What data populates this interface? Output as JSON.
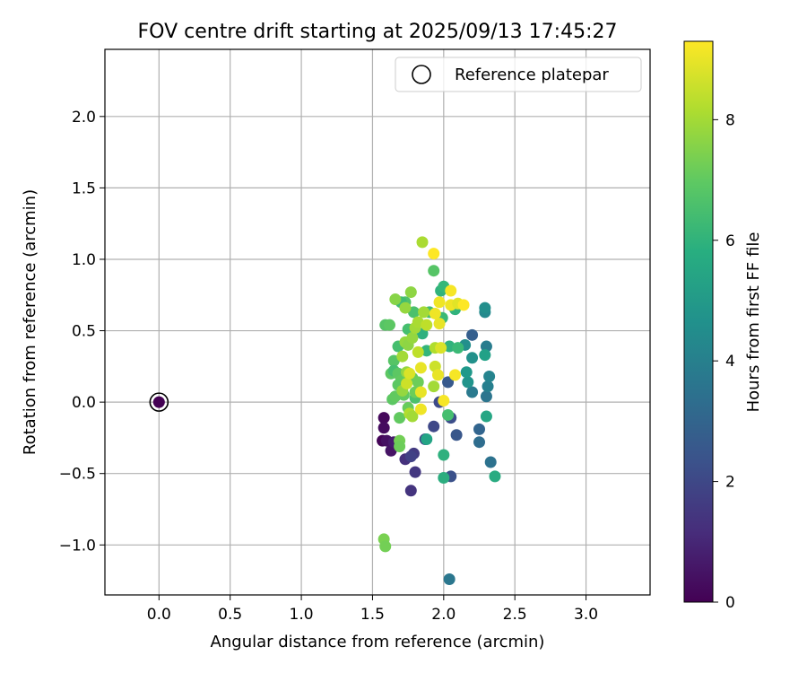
{
  "chart_data": {
    "type": "scatter",
    "title": "FOV centre drift starting at 2025/09/13 17:45:27",
    "xlabel": "Angular distance from reference (arcmin)",
    "ylabel": "Rotation from reference (arcmin)",
    "xlim": [
      -0.38,
      3.45
    ],
    "ylim": [
      -1.35,
      2.47
    ],
    "xticks": [
      "0.0",
      "0.5",
      "1.0",
      "1.5",
      "2.0",
      "2.5",
      "3.0"
    ],
    "xtick_values": [
      0,
      0.5,
      1,
      1.5,
      2,
      2.5,
      3
    ],
    "yticks": [
      "−1.0",
      "−0.5",
      "0.0",
      "0.5",
      "1.0",
      "1.5",
      "2.0"
    ],
    "ytick_values": [
      -1,
      -0.5,
      0,
      0.5,
      1,
      1.5,
      2
    ],
    "grid": true,
    "legend": {
      "position": "top-right",
      "entries": [
        "Reference platepar"
      ]
    },
    "colorbar": {
      "label": "Hours from first FF file",
      "range": [
        0,
        9.3
      ],
      "ticks": [
        "0",
        "2",
        "4",
        "6",
        "8"
      ],
      "tick_values": [
        0,
        2,
        4,
        6,
        8
      ],
      "colormap": "viridis"
    },
    "reference_point": {
      "x": 0,
      "y": 0,
      "hours": 0
    },
    "points": [
      {
        "x": 1.58,
        "y": -0.11,
        "h": 0.2
      },
      {
        "x": 1.58,
        "y": -0.18,
        "h": 0.3
      },
      {
        "x": 1.57,
        "y": -0.27,
        "h": 0.1
      },
      {
        "x": 1.6,
        "y": -0.27,
        "h": 0.4
      },
      {
        "x": 1.63,
        "y": -0.34,
        "h": 0.5
      },
      {
        "x": 1.65,
        "y": -0.28,
        "h": 0.7
      },
      {
        "x": 1.73,
        "y": -0.4,
        "h": 1.3
      },
      {
        "x": 1.77,
        "y": -0.62,
        "h": 1.4
      },
      {
        "x": 1.8,
        "y": -0.49,
        "h": 1.5
      },
      {
        "x": 1.79,
        "y": -0.36,
        "h": 1.6
      },
      {
        "x": 1.77,
        "y": -0.38,
        "h": 1.8
      },
      {
        "x": 1.87,
        "y": -0.26,
        "h": 1.9
      },
      {
        "x": 1.93,
        "y": -0.17,
        "h": 2.0
      },
      {
        "x": 1.97,
        "y": 0.0,
        "h": 2.1
      },
      {
        "x": 2.05,
        "y": -0.11,
        "h": 2.2
      },
      {
        "x": 2.05,
        "y": -0.52,
        "h": 2.3
      },
      {
        "x": 2.09,
        "y": -0.23,
        "h": 2.5
      },
      {
        "x": 2.03,
        "y": 0.14,
        "h": 2.6
      },
      {
        "x": 2.2,
        "y": 0.47,
        "h": 2.8
      },
      {
        "x": 2.25,
        "y": -0.19,
        "h": 3.0
      },
      {
        "x": 2.25,
        "y": -0.28,
        "h": 3.3
      },
      {
        "x": 2.33,
        "y": -0.42,
        "h": 3.5
      },
      {
        "x": 2.3,
        "y": 0.04,
        "h": 3.6
      },
      {
        "x": 2.2,
        "y": 0.07,
        "h": 3.8
      },
      {
        "x": 2.3,
        "y": 0.39,
        "h": 3.9
      },
      {
        "x": 2.31,
        "y": 0.11,
        "h": 4.0
      },
      {
        "x": 2.32,
        "y": 0.18,
        "h": 4.2
      },
      {
        "x": 2.29,
        "y": 0.63,
        "h": 4.4
      },
      {
        "x": 2.29,
        "y": 0.66,
        "h": 4.6
      },
      {
        "x": 2.04,
        "y": -1.24,
        "h": 3.7
      },
      {
        "x": 2.15,
        "y": 0.4,
        "h": 4.6
      },
      {
        "x": 2.2,
        "y": 0.31,
        "h": 4.7
      },
      {
        "x": 2.17,
        "y": 0.14,
        "h": 4.8
      },
      {
        "x": 2.16,
        "y": 0.21,
        "h": 5.0
      },
      {
        "x": 2.29,
        "y": 0.33,
        "h": 5.3
      },
      {
        "x": 2.3,
        "y": -0.1,
        "h": 5.5
      },
      {
        "x": 2.36,
        "y": -0.52,
        "h": 5.7
      },
      {
        "x": 2.0,
        "y": -0.53,
        "h": 5.8
      },
      {
        "x": 2.0,
        "y": -0.37,
        "h": 5.9
      },
      {
        "x": 2.08,
        "y": 0.65,
        "h": 6.0
      },
      {
        "x": 1.98,
        "y": 0.78,
        "h": 6.0
      },
      {
        "x": 2.0,
        "y": 0.81,
        "h": 6.2
      },
      {
        "x": 1.88,
        "y": -0.26,
        "h": 5.4
      },
      {
        "x": 1.99,
        "y": 0.59,
        "h": 6.3
      },
      {
        "x": 2.04,
        "y": 0.39,
        "h": 6.0
      },
      {
        "x": 2.1,
        "y": 0.38,
        "h": 6.3
      },
      {
        "x": 2.03,
        "y": -0.09,
        "h": 6.5
      },
      {
        "x": 1.85,
        "y": 0.48,
        "h": 5.9
      },
      {
        "x": 1.88,
        "y": 0.36,
        "h": 6.1
      },
      {
        "x": 1.9,
        "y": 0.63,
        "h": 6.4
      },
      {
        "x": 1.93,
        "y": 0.92,
        "h": 6.8
      },
      {
        "x": 1.75,
        "y": 0.51,
        "h": 6.5
      },
      {
        "x": 1.79,
        "y": 0.63,
        "h": 6.6
      },
      {
        "x": 1.73,
        "y": 0.7,
        "h": 6.7
      },
      {
        "x": 1.7,
        "y": 0.7,
        "h": 6.4
      },
      {
        "x": 1.68,
        "y": 0.39,
        "h": 6.5
      },
      {
        "x": 1.65,
        "y": 0.29,
        "h": 6.8
      },
      {
        "x": 1.63,
        "y": 0.2,
        "h": 6.9
      },
      {
        "x": 1.65,
        "y": 0.22,
        "h": 6.5
      },
      {
        "x": 1.68,
        "y": 0.2,
        "h": 6.9
      },
      {
        "x": 1.7,
        "y": 0.15,
        "h": 7.0
      },
      {
        "x": 1.68,
        "y": 0.12,
        "h": 6.9
      },
      {
        "x": 1.72,
        "y": 0.05,
        "h": 7.0
      },
      {
        "x": 1.75,
        "y": -0.04,
        "h": 7.1
      },
      {
        "x": 1.8,
        "y": 0.03,
        "h": 6.6
      },
      {
        "x": 1.8,
        "y": 0.07,
        "h": 7.2
      },
      {
        "x": 1.78,
        "y": 0.17,
        "h": 7.1
      },
      {
        "x": 1.82,
        "y": 0.14,
        "h": 7.2
      },
      {
        "x": 1.64,
        "y": 0.02,
        "h": 6.9
      },
      {
        "x": 1.66,
        "y": 0.04,
        "h": 7.0
      },
      {
        "x": 1.69,
        "y": -0.11,
        "h": 7.0
      },
      {
        "x": 1.69,
        "y": -0.27,
        "h": 7.3
      },
      {
        "x": 1.69,
        "y": -0.31,
        "h": 7.2
      },
      {
        "x": 1.59,
        "y": 0.54,
        "h": 6.8
      },
      {
        "x": 1.62,
        "y": 0.54,
        "h": 6.9
      },
      {
        "x": 1.58,
        "y": -0.96,
        "h": 7.4
      },
      {
        "x": 1.59,
        "y": -1.01,
        "h": 7.3
      },
      {
        "x": 1.66,
        "y": 0.72,
        "h": 7.6
      },
      {
        "x": 1.77,
        "y": 0.77,
        "h": 7.7
      },
      {
        "x": 1.73,
        "y": 0.66,
        "h": 7.8
      },
      {
        "x": 1.73,
        "y": 0.42,
        "h": 7.8
      },
      {
        "x": 1.75,
        "y": 0.4,
        "h": 7.7
      },
      {
        "x": 1.78,
        "y": 0.45,
        "h": 7.8
      },
      {
        "x": 1.8,
        "y": 0.52,
        "h": 8.0
      },
      {
        "x": 1.82,
        "y": 0.56,
        "h": 8.1
      },
      {
        "x": 1.86,
        "y": 0.63,
        "h": 8.0
      },
      {
        "x": 1.85,
        "y": 1.12,
        "h": 8.1
      },
      {
        "x": 1.71,
        "y": 0.32,
        "h": 8.0
      },
      {
        "x": 1.74,
        "y": 0.21,
        "h": 7.8
      },
      {
        "x": 1.71,
        "y": 0.08,
        "h": 7.8
      },
      {
        "x": 1.76,
        "y": -0.08,
        "h": 8.2
      },
      {
        "x": 1.78,
        "y": -0.1,
        "h": 8.0
      },
      {
        "x": 1.82,
        "y": 0.35,
        "h": 8.4
      },
      {
        "x": 1.88,
        "y": 0.54,
        "h": 8.4
      },
      {
        "x": 1.94,
        "y": 0.38,
        "h": 8.2
      },
      {
        "x": 1.93,
        "y": 0.11,
        "h": 8.0
      },
      {
        "x": 1.94,
        "y": 0.25,
        "h": 8.6
      },
      {
        "x": 1.98,
        "y": 0.38,
        "h": 8.8
      },
      {
        "x": 1.96,
        "y": 0.19,
        "h": 9.0
      },
      {
        "x": 1.97,
        "y": 0.55,
        "h": 9.0
      },
      {
        "x": 1.94,
        "y": 0.62,
        "h": 9.1
      },
      {
        "x": 1.97,
        "y": 0.7,
        "h": 9.1
      },
      {
        "x": 2.05,
        "y": 0.78,
        "h": 9.2
      },
      {
        "x": 2.05,
        "y": 0.68,
        "h": 9.1
      },
      {
        "x": 2.1,
        "y": 0.69,
        "h": 8.9
      },
      {
        "x": 2.14,
        "y": 0.68,
        "h": 9.3
      },
      {
        "x": 1.93,
        "y": 1.04,
        "h": 9.3
      },
      {
        "x": 1.84,
        "y": 0.24,
        "h": 9.0
      },
      {
        "x": 1.84,
        "y": 0.07,
        "h": 9.0
      },
      {
        "x": 1.84,
        "y": -0.05,
        "h": 9.1
      },
      {
        "x": 2.0,
        "y": 0.01,
        "h": 9.2
      },
      {
        "x": 2.08,
        "y": 0.19,
        "h": 9.2
      },
      {
        "x": 1.74,
        "y": 0.13,
        "h": 8.6
      },
      {
        "x": 1.76,
        "y": 0.2,
        "h": 8.8
      }
    ]
  }
}
